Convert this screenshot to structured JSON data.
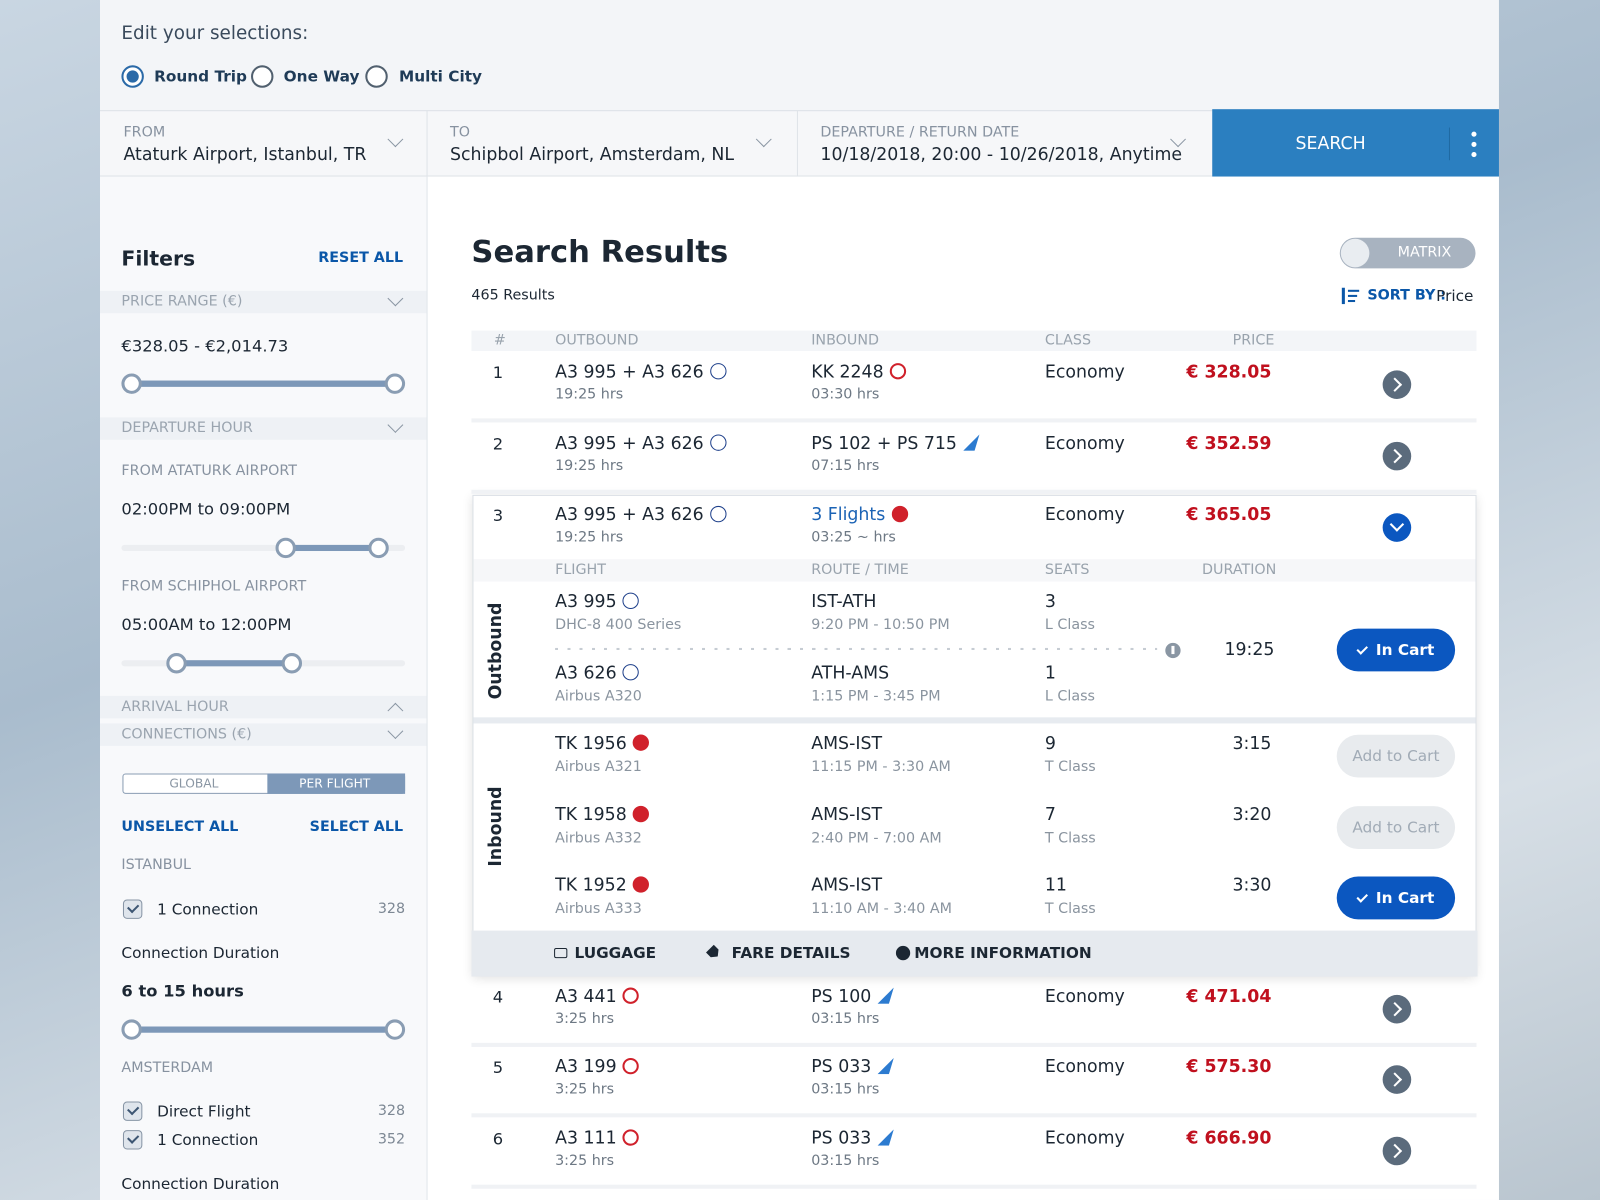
{
  "selections": {
    "label": "Edit your selections:",
    "trip_types": [
      {
        "label": "Round Trip",
        "selected": true
      },
      {
        "label": "One Way",
        "selected": false
      },
      {
        "label": "Multi City",
        "selected": false
      }
    ]
  },
  "search": {
    "fields": [
      {
        "label": "FROM",
        "value": "Ataturk Airport, Istanbul, TR"
      },
      {
        "label": "TO",
        "value": "Schipbol Airport, Amsterdam, NL"
      },
      {
        "label": "DEPARTURE / RETURN DATE",
        "value": "10/18/2018, 20:00 - 10/26/2018, Anytime"
      }
    ],
    "button": "SEARCH"
  },
  "filters": {
    "title": "Filters",
    "reset": "RESET ALL",
    "price_range": {
      "label": "PRICE RANGE (€)",
      "value": "€328.05 - €2,014.73"
    },
    "departure_hour": {
      "label": "DEPARTURE HOUR",
      "groups": [
        {
          "label": "FROM ATATURK AIRPORT",
          "value": "02:00PM to 09:00PM"
        },
        {
          "label": "FROM SCHIPHOL AIRPORT",
          "value": "05:00AM to 12:00PM"
        }
      ]
    },
    "arrival_hour": {
      "label": "ARRIVAL HOUR"
    },
    "connections": {
      "label": "CONNECTIONS (€)",
      "modes": [
        {
          "label": "GLOBAL",
          "selected": false
        },
        {
          "label": "PER FLIGHT",
          "selected": true
        }
      ],
      "unselect": "UNSELECT ALL",
      "select": "SELECT ALL",
      "groups": [
        {
          "city": "ISTANBUL",
          "options": [
            {
              "label": "1 Connection",
              "count": 328,
              "checked": true
            }
          ],
          "duration_label": "Connection Duration",
          "duration": "6 to 15 hours"
        },
        {
          "city": "AMSTERDAM",
          "options": [
            {
              "label": "Direct Flight",
              "count": 328,
              "checked": true
            },
            {
              "label": "1 Connection",
              "count": 352,
              "checked": true
            }
          ],
          "duration_label": "Connection Duration"
        }
      ]
    }
  },
  "results": {
    "title": "Search Results",
    "count": "465 Results",
    "view_toggle": "MATRIX",
    "sort_label": "SORT BY :",
    "sort_value": "Price",
    "columns": [
      "#",
      "OUTBOUND",
      "INBOUND",
      "CLASS",
      "PRICE"
    ],
    "rows": [
      {
        "number": 1,
        "outbound": "A3 995 + A3 626",
        "outbound_duration": "19:25 hrs",
        "inbound": "KK 2248",
        "inbound_duration": "03:30 hrs",
        "class": "Economy",
        "price": "€ 328.05"
      },
      {
        "number": 2,
        "outbound": "A3 995 + A3 626",
        "outbound_duration": "19:25 hrs",
        "inbound": "PS 102 + PS 715",
        "inbound_duration": "07:15 hrs",
        "class": "Economy",
        "price": "€ 352.59"
      },
      {
        "number": 3,
        "outbound": "A3 995 + A3 626",
        "outbound_duration": "19:25 hrs",
        "inbound": "3 Flights",
        "inbound_duration": "03:25 ~ hrs",
        "class": "Economy",
        "price": "€ 365.05",
        "expanded": true
      },
      {
        "number": 4,
        "outbound": "A3 441",
        "outbound_duration": "3:25 hrs",
        "inbound": "PS 100",
        "inbound_duration": "03:15 hrs",
        "class": "Economy",
        "price": "€ 471.04"
      },
      {
        "number": 5,
        "outbound": "A3 199",
        "outbound_duration": "3:25 hrs",
        "inbound": "PS 033",
        "inbound_duration": "03:15 hrs",
        "class": "Economy",
        "price": "€ 575.30"
      },
      {
        "number": 6,
        "outbound": "A3 111",
        "outbound_duration": "3:25 hrs",
        "inbound": "PS 033",
        "inbound_duration": "03:15 hrs",
        "class": "Economy",
        "price": "€ 666.90"
      }
    ],
    "details": {
      "columns": [
        "FLIGHT",
        "ROUTE / TIME",
        "SEATS",
        "DURATION"
      ],
      "sections": [
        {
          "label": "Outbound",
          "duration": "19:25",
          "action": "In Cart",
          "flights": [
            {
              "flight": "A3 995",
              "aircraft": "DHC-8 400 Series",
              "route": "IST-ATH",
              "time": "9:20 PM - 10:50 PM",
              "seats": 3,
              "seat_class": "L Class"
            },
            {
              "flight": "A3 626",
              "aircraft": "Airbus A320",
              "route": "ATH-AMS",
              "time": "1:15 PM - 3:45 PM",
              "seats": 1,
              "seat_class": "L Class"
            }
          ]
        },
        {
          "label": "Inbound",
          "flights": [
            {
              "flight": "TK 1956",
              "aircraft": "Airbus A321",
              "route": "AMS-IST",
              "time": "11:15 PM - 3:30 AM",
              "seats": 9,
              "seat_class": "T Class",
              "duration": "3:15",
              "action": "Add to Cart"
            },
            {
              "flight": "TK 1958",
              "aircraft": "Airbus A332",
              "route": "AMS-IST",
              "time": "2:40 PM - 7:00 AM",
              "seats": 7,
              "seat_class": "T Class",
              "duration": "3:20",
              "action": "Add to Cart"
            },
            {
              "flight": "TK 1952",
              "aircraft": "Airbus A333",
              "route": "AMS-IST",
              "time": "11:10 AM - 3:40 AM",
              "seats": 11,
              "seat_class": "T Class",
              "duration": "3:30",
              "action": "In Cart"
            }
          ]
        }
      ],
      "links": [
        "LUGGAGE",
        "FARE DETAILS",
        "MORE INFORMATION"
      ]
    }
  }
}
